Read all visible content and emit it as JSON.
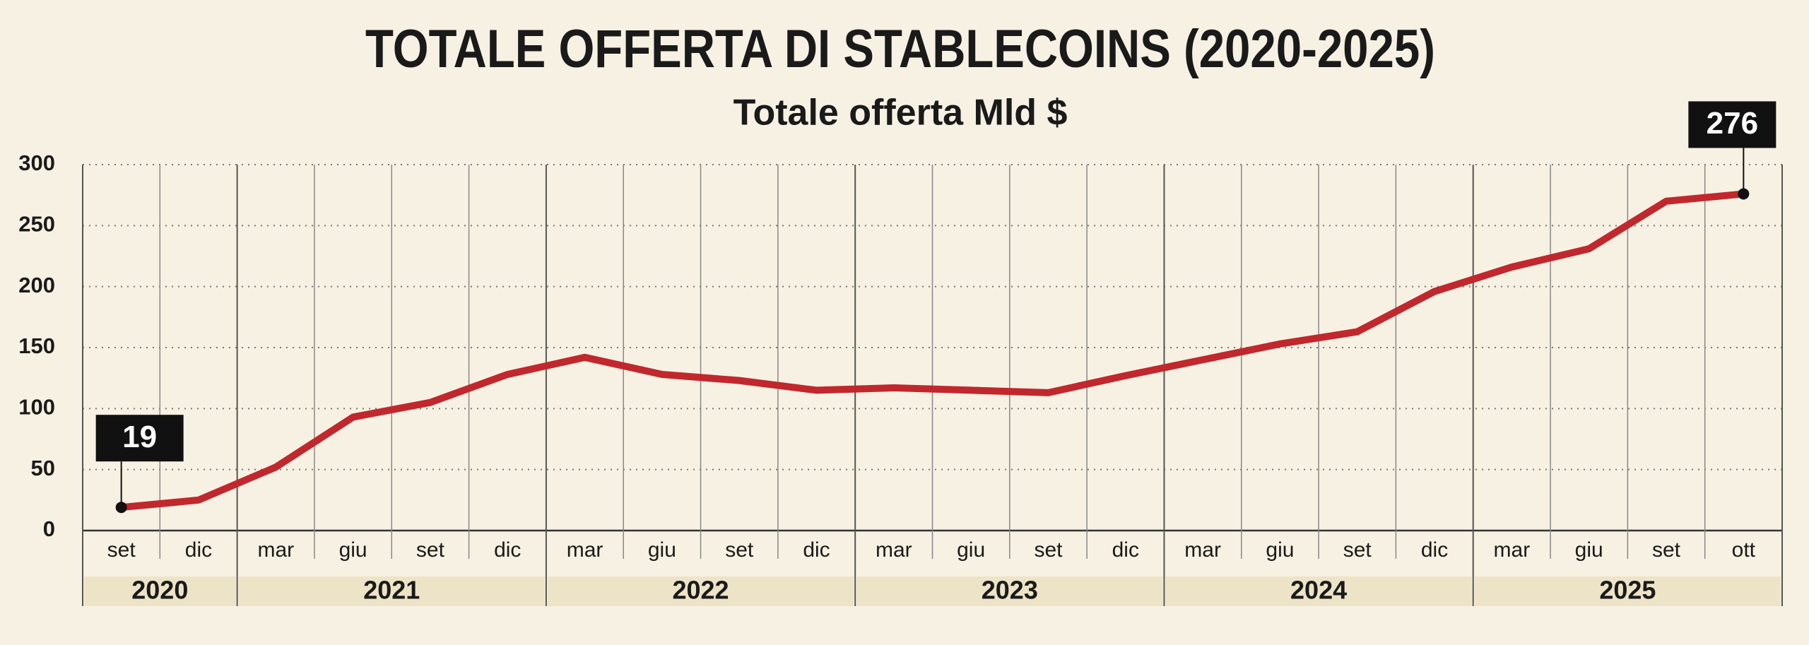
{
  "chart_data": {
    "type": "line",
    "title": "TOTALE OFFERTA DI STABLECOINS (2020-2025)",
    "subtitle": "Totale offerta Mld $",
    "categories": [
      "set",
      "dic",
      "mar",
      "giu",
      "set",
      "dic",
      "mar",
      "giu",
      "set",
      "dic",
      "mar",
      "giu",
      "set",
      "dic",
      "mar",
      "giu",
      "set",
      "dic",
      "mar",
      "giu",
      "set",
      "ott"
    ],
    "x_groups": [
      {
        "label": "2020",
        "span": 2
      },
      {
        "label": "2021",
        "span": 4
      },
      {
        "label": "2022",
        "span": 4
      },
      {
        "label": "2023",
        "span": 4
      },
      {
        "label": "2024",
        "span": 4
      },
      {
        "label": "2025",
        "span": 4
      }
    ],
    "series": [
      {
        "name": "Totale offerta",
        "color": "#c0282d",
        "values": [
          19,
          25,
          52,
          93,
          105,
          128,
          142,
          128,
          123,
          115,
          117,
          115,
          113,
          127,
          140,
          153,
          163,
          196,
          216,
          231,
          270,
          276
        ]
      }
    ],
    "labeled_points": [
      0,
      21
    ],
    "ylim": [
      0,
      300
    ],
    "yticks": [
      0,
      50,
      100,
      150,
      200,
      250,
      300
    ],
    "grid": true
  }
}
